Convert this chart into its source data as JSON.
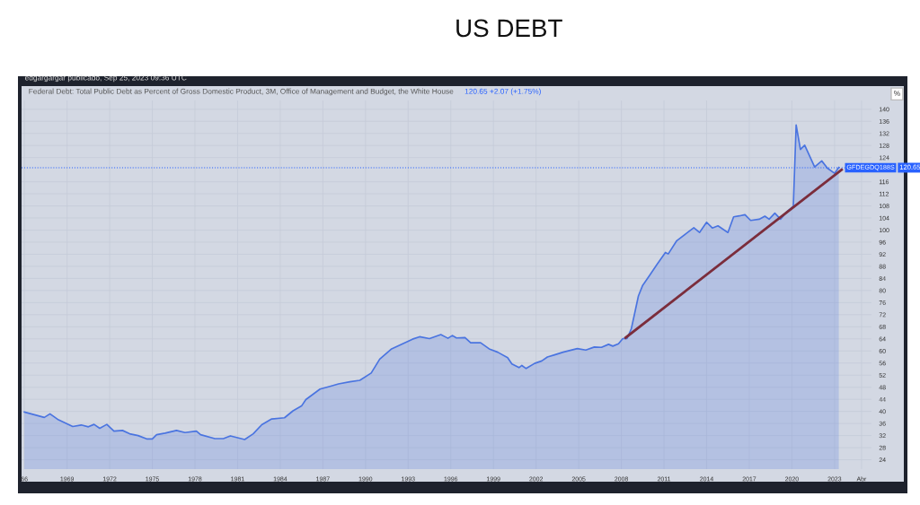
{
  "chart_data": {
    "type": "area",
    "title": "US DEBT",
    "annotations": [
      "edgargargar publicado, Sep 25, 2023 09:36 UTC",
      "Federal Debt: Total Public Debt as Percent of Gross Domestic Product, 3M, Office of Management and Budget, the White House",
      "120.65 +2.07 (+1.75%)",
      "%",
      "120.65"
    ],
    "series": [
      {
        "name": null,
        "type": "area",
        "color": "#4a74e0",
        "x": [
          1966.0,
          1967.4,
          1967.8,
          1968.4,
          1969.4,
          1970.0,
          1970.5,
          1970.9,
          1971.3,
          1971.8,
          1972.3,
          1972.9,
          1973.4,
          1974.0,
          1974.6,
          1975.0,
          1975.3,
          1975.9,
          1976.7,
          1977.3,
          1978.1,
          1978.4,
          1979.4,
          1980.0,
          1980.5,
          1981.5,
          1982.1,
          1982.7,
          1983.4,
          1984.3,
          1984.9,
          1985.5,
          1985.8,
          1986.8,
          1987.5,
          1988.1,
          1988.9,
          1989.6,
          1990.4,
          1991.0,
          1991.8,
          1993.3,
          1993.8,
          1994.5,
          1995.3,
          1995.8,
          1996.1,
          1996.4,
          1997.0,
          1997.4,
          1998.1,
          1998.7,
          1999.3,
          2000.0,
          2000.3,
          2000.8,
          2001.0,
          2001.3,
          2001.9,
          2002.4,
          2002.8,
          2003.3,
          2003.9,
          2004.9,
          2005.5,
          2006.1,
          2006.6,
          2007.1,
          2007.4,
          2007.8,
          2008.1,
          2008.4,
          2008.7,
          2009.0,
          2009.2,
          2009.5,
          2010.0,
          2010.5,
          2011.1,
          2011.3,
          2011.9,
          2012.6,
          2013.1,
          2013.5,
          2014.0,
          2014.4,
          2014.8,
          2015.5,
          2015.9,
          2016.3,
          2016.7,
          2017.1,
          2017.7,
          2018.1,
          2018.4,
          2018.8,
          2019.2,
          2019.6,
          2020.1,
          2020.3,
          2020.6,
          2020.9,
          2021.6,
          2022.1,
          2022.5,
          2023.0,
          2023.3
        ],
        "values": [
          39.8,
          38.0,
          39.2,
          37.2,
          35.0,
          35.5,
          34.9,
          35.7,
          34.4,
          35.7,
          33.5,
          33.7,
          32.6,
          32.0,
          30.9,
          30.9,
          32.3,
          32.8,
          33.7,
          33.0,
          33.5,
          32.3,
          31.0,
          31.0,
          31.9,
          30.7,
          32.6,
          35.6,
          37.5,
          37.9,
          40.2,
          41.8,
          43.9,
          47.4,
          48.3,
          49.1,
          49.8,
          50.3,
          52.7,
          57.3,
          60.6,
          63.9,
          64.7,
          64.1,
          65.4,
          64.2,
          65.1,
          64.3,
          64.4,
          62.7,
          62.7,
          60.7,
          59.6,
          57.8,
          55.7,
          54.5,
          55.2,
          54.2,
          55.9,
          56.7,
          58.0,
          58.7,
          59.6,
          60.8,
          60.3,
          61.3,
          61.2,
          62.2,
          61.6,
          62.4,
          64.1,
          64.1,
          67.3,
          73.8,
          78.2,
          81.7,
          85.1,
          88.6,
          92.6,
          92.1,
          96.5,
          99.0,
          100.8,
          99.2,
          102.6,
          100.7,
          101.4,
          99.2,
          104.4,
          104.7,
          105.1,
          103.2,
          103.6,
          104.6,
          103.6,
          105.6,
          103.6,
          105.9,
          107.9,
          134.8,
          126.7,
          128.1,
          120.9,
          122.9,
          120.5,
          118.8,
          120.7
        ]
      },
      {
        "name": null,
        "type": "line",
        "color": "#7b2d3c",
        "x": [
          2008.3,
          2023.5
        ],
        "values": [
          64.4,
          120.0
        ]
      }
    ],
    "xlim": [
      1965.8,
      2025.6
    ],
    "xticks": [
      {
        "value": 1966,
        "label": "66"
      },
      1969,
      1972,
      1975,
      1978,
      1981,
      1984,
      1987,
      1990,
      1993,
      1996,
      1999,
      2002,
      2005,
      2008,
      2011,
      2014,
      2017,
      2020,
      2023,
      {
        "value": 2024.9,
        "label": "Abr"
      }
    ],
    "ylim": [
      20.9,
      142.9
    ],
    "yticks": [
      24,
      28,
      32,
      36,
      40,
      44,
      48,
      52,
      56,
      60,
      64,
      68,
      72,
      76,
      80,
      84,
      88,
      92,
      96,
      100,
      104,
      108,
      112,
      116,
      124,
      128,
      132,
      136,
      140
    ],
    "ref_lines": [
      {
        "axis": "y",
        "value": 120.65,
        "label": "GFDEGDQ188S",
        "color": "#2962ff",
        "line_style": "dotted"
      }
    ],
    "grid": true,
    "legend": false
  }
}
